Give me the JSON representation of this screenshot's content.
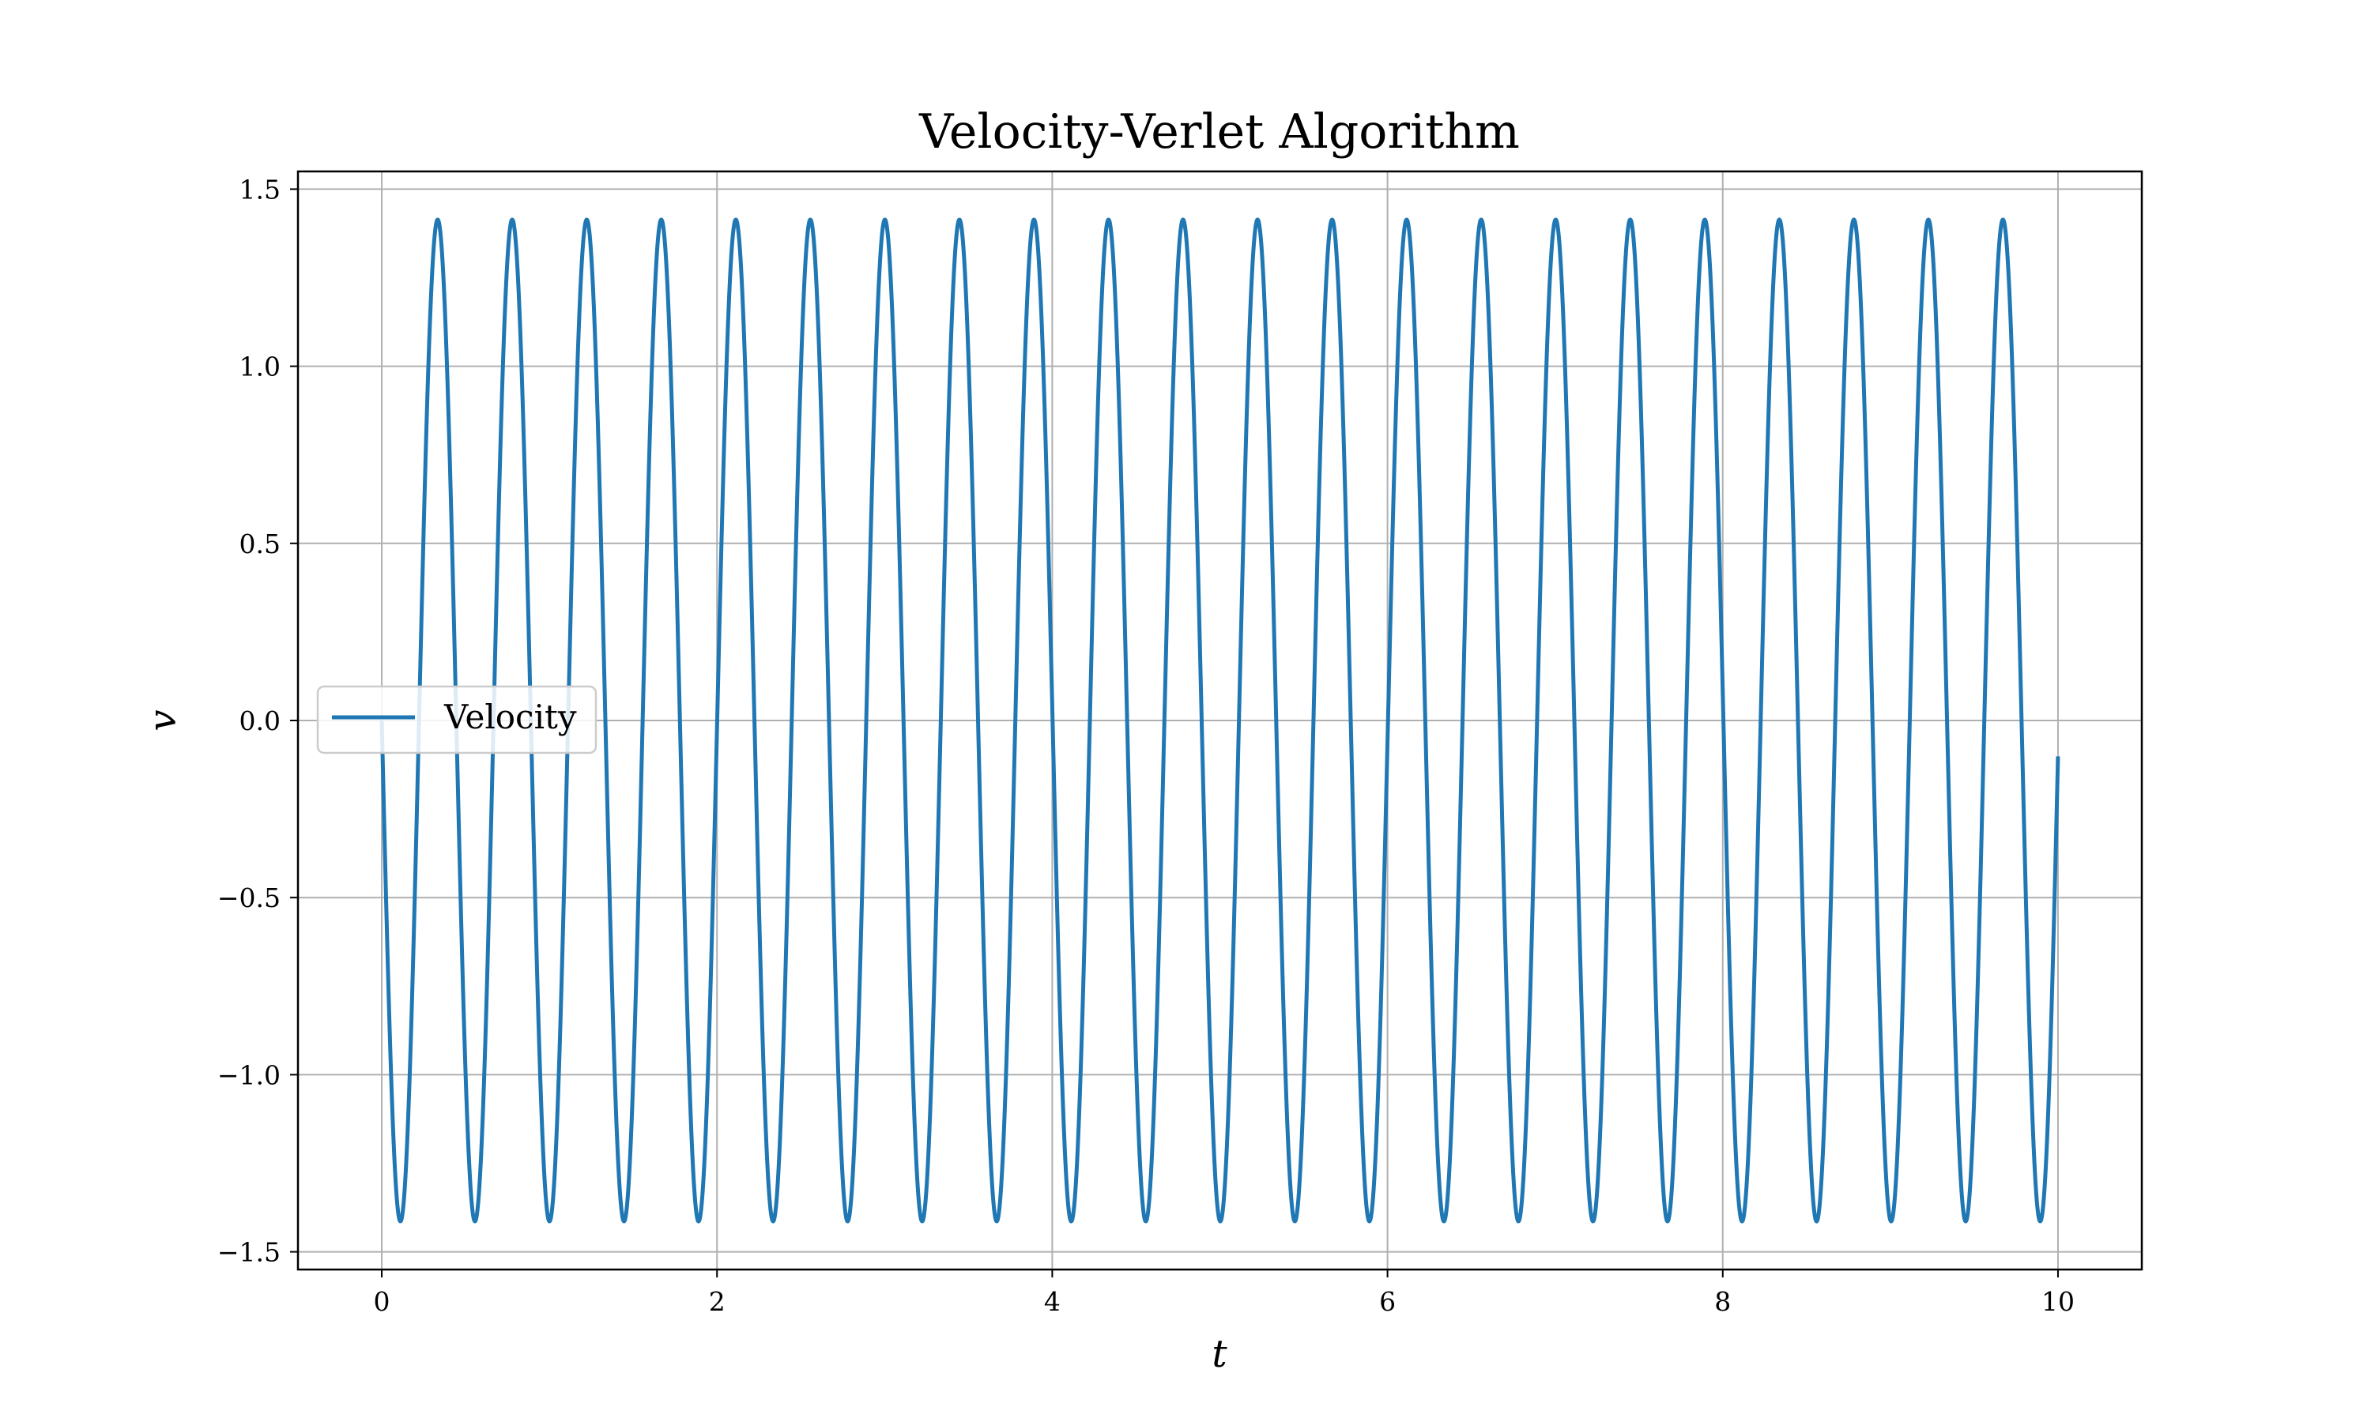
{
  "chart_data": {
    "type": "line",
    "title": "Velocity-Verlet Algorithm",
    "xlabel": "t",
    "ylabel": "v",
    "xlim": [
      -0.5,
      10.5
    ],
    "ylim": [
      -1.55,
      1.55
    ],
    "x_ticks": [
      0,
      2,
      4,
      6,
      8,
      10
    ],
    "y_ticks": [
      -1.5,
      -1.0,
      -0.5,
      0.0,
      0.5,
      1.0,
      1.5
    ],
    "x_tick_labels": [
      "0",
      "2",
      "4",
      "6",
      "8",
      "10"
    ],
    "y_tick_labels": [
      "−1.5",
      "−1.0",
      "−0.5",
      "0.0",
      "0.5",
      "1.0",
      "1.5"
    ],
    "grid": true,
    "legend": {
      "position": "center-left",
      "entries": [
        "Velocity"
      ]
    },
    "series": [
      {
        "name": "Velocity",
        "color": "#1f77b4",
        "function": "v(t) = -1.414 * sin(14.13 * t)",
        "amplitude": 1.414,
        "angular_frequency": 14.13,
        "x_start": 0,
        "x_end": 10
      }
    ]
  }
}
